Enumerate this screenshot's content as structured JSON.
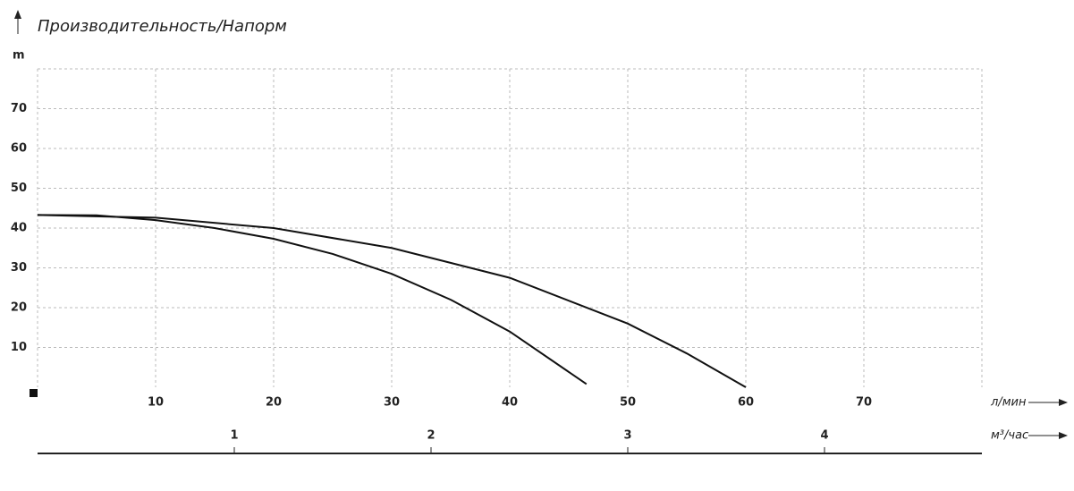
{
  "chart_data": {
    "type": "line",
    "title": "Производительность/Напорм",
    "ylabel": "m",
    "xlabel": "л/мин",
    "x2label": "м³/час",
    "xlim": [
      0,
      80
    ],
    "xticks": [
      10,
      20,
      30,
      40,
      50,
      60,
      70
    ],
    "ylim": [
      0,
      80
    ],
    "yticks": [
      10,
      20,
      30,
      40,
      50,
      60,
      70
    ],
    "x2lim": [
      0,
      4.8
    ],
    "x2ticks": [
      1,
      2,
      3,
      4
    ],
    "grid": true,
    "series": [
      {
        "color": "#111111",
        "x": [
          0,
          5,
          10,
          15,
          20,
          25,
          30,
          35,
          40,
          46.5
        ],
        "values": [
          43.3,
          43.2,
          42,
          40,
          37.3,
          33.5,
          28.5,
          22,
          14,
          0.8
        ]
      },
      {
        "color": "#111111",
        "x": [
          0,
          10,
          20,
          30,
          40,
          50,
          55,
          60
        ],
        "values": [
          43.3,
          42.6,
          40,
          35,
          27.5,
          16,
          8.5,
          0
        ]
      }
    ]
  }
}
